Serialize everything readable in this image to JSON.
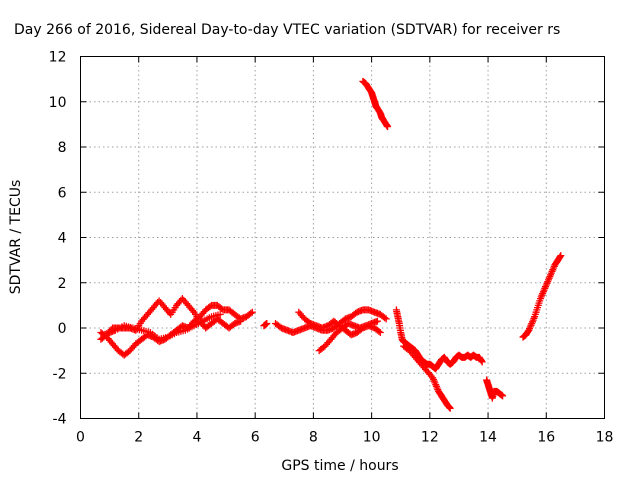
{
  "chart_data": {
    "type": "scatter",
    "title": "Day 266 of 2016, Sidereal Day-to-day VTEC variation (SDTVAR) for receiver rs",
    "xlabel": "GPS time / hours",
    "ylabel": "SDTVAR / TECUs",
    "xlim": [
      0,
      18
    ],
    "ylim": [
      -4,
      12
    ],
    "xticks": [
      "0",
      "2",
      "4",
      "6",
      "8",
      "10",
      "12",
      "14",
      "16",
      "18"
    ],
    "yticks": [
      "-4",
      "-2",
      "0",
      "2",
      "4",
      "6",
      "8",
      "10",
      "12"
    ],
    "grid": true,
    "marker": "plus",
    "color": "#ff0000",
    "segments": [
      [
        [
          0.7,
          -0.2
        ],
        [
          0.9,
          -0.4
        ],
        [
          1.1,
          -0.7
        ],
        [
          1.3,
          -1.0
        ],
        [
          1.5,
          -1.2
        ],
        [
          1.7,
          -1.0
        ],
        [
          1.9,
          -0.7
        ],
        [
          2.1,
          -0.5
        ],
        [
          2.3,
          -0.3
        ],
        [
          2.5,
          -0.4
        ],
        [
          2.7,
          -0.6
        ],
        [
          2.9,
          -0.5
        ],
        [
          3.1,
          -0.3
        ],
        [
          3.3,
          -0.1
        ],
        [
          3.5,
          0.1
        ],
        [
          3.7,
          0.0
        ],
        [
          3.9,
          0.3
        ],
        [
          4.1,
          0.5
        ],
        [
          4.3,
          0.8
        ],
        [
          4.5,
          1.0
        ],
        [
          4.7,
          1.0
        ],
        [
          4.9,
          0.8
        ],
        [
          5.1,
          0.8
        ],
        [
          5.3,
          0.6
        ],
        [
          5.5,
          0.4
        ],
        [
          5.7,
          0.5
        ],
        [
          5.9,
          0.7
        ]
      ],
      [
        [
          0.7,
          -0.5
        ],
        [
          0.9,
          -0.3
        ],
        [
          1.1,
          0.0
        ],
        [
          1.3,
          0.0
        ],
        [
          1.5,
          0.0
        ],
        [
          1.7,
          0.0
        ],
        [
          1.9,
          -0.1
        ],
        [
          2.1,
          0.3
        ],
        [
          2.3,
          0.6
        ],
        [
          2.5,
          0.9
        ],
        [
          2.7,
          1.2
        ],
        [
          2.9,
          0.9
        ],
        [
          3.1,
          0.6
        ],
        [
          3.3,
          1.0
        ],
        [
          3.5,
          1.3
        ],
        [
          3.7,
          1.0
        ],
        [
          3.9,
          0.7
        ],
        [
          4.1,
          0.3
        ],
        [
          4.3,
          0.0
        ],
        [
          4.5,
          0.2
        ],
        [
          4.7,
          0.4
        ],
        [
          4.9,
          0.2
        ],
        [
          5.1,
          0.0
        ],
        [
          5.3,
          0.2
        ],
        [
          5.5,
          0.3
        ]
      ],
      [
        [
          0.8,
          -0.3
        ],
        [
          1.0,
          -0.2
        ],
        [
          1.2,
          -0.1
        ],
        [
          1.5,
          0.1
        ],
        [
          1.8,
          0.0
        ],
        [
          2.1,
          -0.1
        ],
        [
          2.4,
          -0.2
        ],
        [
          2.7,
          -0.5
        ],
        [
          3.0,
          -0.4
        ],
        [
          3.3,
          -0.2
        ],
        [
          3.6,
          -0.1
        ],
        [
          3.9,
          0.1
        ],
        [
          4.2,
          0.3
        ],
        [
          4.5,
          0.5
        ],
        [
          4.8,
          0.6
        ]
      ],
      [
        [
          6.3,
          0.1
        ],
        [
          6.4,
          0.2
        ]
      ],
      [
        [
          6.7,
          0.2
        ],
        [
          6.9,
          0.0
        ],
        [
          7.1,
          -0.1
        ],
        [
          7.3,
          -0.2
        ],
        [
          7.5,
          -0.1
        ],
        [
          7.7,
          0.0
        ],
        [
          7.9,
          0.1
        ],
        [
          8.1,
          0.0
        ],
        [
          8.3,
          -0.1
        ],
        [
          8.5,
          -0.1
        ],
        [
          8.7,
          0.0
        ],
        [
          8.9,
          0.2
        ],
        [
          9.1,
          0.4
        ],
        [
          9.3,
          0.5
        ],
        [
          9.5,
          0.7
        ],
        [
          9.7,
          0.8
        ],
        [
          9.9,
          0.8
        ],
        [
          10.1,
          0.7
        ],
        [
          10.3,
          0.6
        ],
        [
          10.5,
          0.4
        ]
      ],
      [
        [
          7.5,
          0.7
        ],
        [
          7.7,
          0.4
        ],
        [
          7.9,
          0.2
        ],
        [
          8.1,
          0.1
        ],
        [
          8.3,
          0.0
        ],
        [
          8.5,
          0.1
        ],
        [
          8.7,
          0.3
        ],
        [
          8.9,
          0.1
        ],
        [
          9.1,
          -0.1
        ],
        [
          9.3,
          -0.3
        ],
        [
          9.5,
          -0.2
        ],
        [
          9.7,
          0.0
        ],
        [
          9.9,
          0.1
        ],
        [
          10.1,
          0.0
        ],
        [
          10.3,
          -0.2
        ]
      ],
      [
        [
          8.2,
          -1.0
        ],
        [
          8.4,
          -0.8
        ],
        [
          8.6,
          -0.5
        ],
        [
          8.8,
          -0.2
        ],
        [
          9.0,
          0.0
        ],
        [
          9.2,
          0.2
        ],
        [
          9.4,
          0.1
        ],
        [
          9.6,
          0.0
        ],
        [
          9.8,
          0.1
        ],
        [
          10.0,
          0.2
        ],
        [
          10.2,
          0.3
        ]
      ],
      [
        [
          9.7,
          10.9
        ],
        [
          9.8,
          10.8
        ],
        [
          9.9,
          10.6
        ],
        [
          10.0,
          10.4
        ],
        [
          10.05,
          10.2
        ],
        [
          10.1,
          10.0
        ],
        [
          10.15,
          9.8
        ],
        [
          10.2,
          9.7
        ],
        [
          10.3,
          9.5
        ],
        [
          10.35,
          9.3
        ],
        [
          10.4,
          9.2
        ],
        [
          10.5,
          9.0
        ],
        [
          10.55,
          8.9
        ]
      ],
      [
        [
          10.85,
          0.8
        ],
        [
          10.9,
          0.5
        ],
        [
          10.95,
          0.2
        ],
        [
          11.0,
          -0.2
        ],
        [
          11.05,
          -0.5
        ],
        [
          11.1,
          -0.6
        ],
        [
          11.2,
          -0.7
        ],
        [
          11.3,
          -0.8
        ],
        [
          11.4,
          -0.9
        ],
        [
          11.5,
          -1.0
        ],
        [
          11.6,
          -1.2
        ],
        [
          11.7,
          -1.4
        ],
        [
          11.8,
          -1.5
        ],
        [
          11.9,
          -1.6
        ],
        [
          12.0,
          -1.6
        ],
        [
          12.1,
          -1.7
        ],
        [
          12.2,
          -1.8
        ],
        [
          12.3,
          -1.6
        ],
        [
          12.4,
          -1.4
        ],
        [
          12.5,
          -1.3
        ],
        [
          12.6,
          -1.5
        ],
        [
          12.7,
          -1.6
        ],
        [
          12.8,
          -1.5
        ],
        [
          12.9,
          -1.3
        ],
        [
          13.0,
          -1.2
        ],
        [
          13.1,
          -1.3
        ],
        [
          13.2,
          -1.3
        ],
        [
          13.3,
          -1.2
        ],
        [
          13.4,
          -1.3
        ],
        [
          13.5,
          -1.2
        ],
        [
          13.6,
          -1.3
        ],
        [
          13.7,
          -1.3
        ],
        [
          13.8,
          -1.5
        ]
      ],
      [
        [
          11.1,
          -0.8
        ],
        [
          11.3,
          -1.0
        ],
        [
          11.5,
          -1.3
        ],
        [
          11.7,
          -1.6
        ],
        [
          11.9,
          -1.9
        ],
        [
          12.1,
          -2.2
        ],
        [
          12.2,
          -2.5
        ],
        [
          12.3,
          -2.8
        ],
        [
          12.4,
          -3.0
        ],
        [
          12.5,
          -3.2
        ],
        [
          12.6,
          -3.4
        ],
        [
          12.7,
          -3.55
        ]
      ],
      [
        [
          13.95,
          -2.3
        ],
        [
          14.0,
          -2.5
        ],
        [
          14.05,
          -2.7
        ],
        [
          14.1,
          -2.9
        ],
        [
          14.15,
          -3.1
        ],
        [
          14.2,
          -2.8
        ],
        [
          14.3,
          -2.8
        ],
        [
          14.4,
          -2.9
        ],
        [
          14.5,
          -3.0
        ]
      ],
      [
        [
          15.2,
          -0.4
        ],
        [
          15.3,
          -0.3
        ],
        [
          15.4,
          -0.1
        ],
        [
          15.5,
          0.2
        ],
        [
          15.6,
          0.5
        ],
        [
          15.7,
          0.9
        ],
        [
          15.8,
          1.3
        ],
        [
          15.9,
          1.6
        ],
        [
          16.0,
          1.9
        ],
        [
          16.1,
          2.2
        ],
        [
          16.2,
          2.5
        ],
        [
          16.3,
          2.8
        ],
        [
          16.4,
          3.0
        ],
        [
          16.5,
          3.2
        ]
      ]
    ]
  }
}
